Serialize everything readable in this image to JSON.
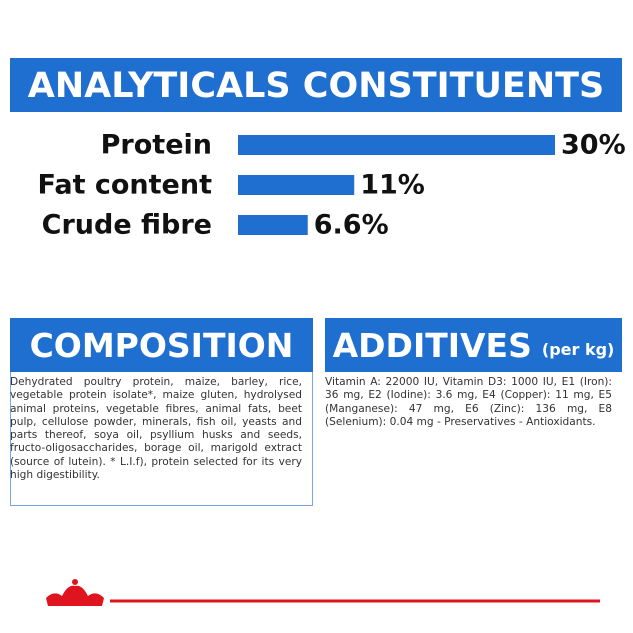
{
  "chart_data": {
    "type": "bar",
    "orientation": "horizontal",
    "title": "ANALYTICALS CONSTITUENTS",
    "categories": [
      "Protein",
      "Fat content",
      "Crude fibre"
    ],
    "values": [
      30,
      11,
      6.6
    ],
    "value_labels": [
      "30%",
      "11%",
      "6.6%"
    ],
    "color": "#1f6fd1"
  },
  "composition": {
    "title": "COMPOSITION",
    "text": "Dehydrated poultry protein, maize, barley, rice, vegetable protein isolate*, maize gluten, hydrolysed animal proteins, vegetable fibres, animal fats, beet pulp, cellulose powder, minerals, fish oil, yeasts and parts thereof, soya oil, psyllium husks and seeds, fructo-oligosaccharides, borage oil, marigold extract (source of lutein). * L.I.f), protein selected for its very high digestibility."
  },
  "additives": {
    "title": "ADDITIVES",
    "unit": "(per kg)",
    "text": "Vitamin A: 22000 IU, Vitamin D3: 1000 IU, E1 (Iron): 36 mg, E2 (Iodine): 3.6 mg, E4 (Copper): 11 mg, E5 (Manganese): 47 mg, E6 (Zinc): 136 mg, E8 (Selenium): 0.04 mg - Preservatives - Antioxidants."
  }
}
